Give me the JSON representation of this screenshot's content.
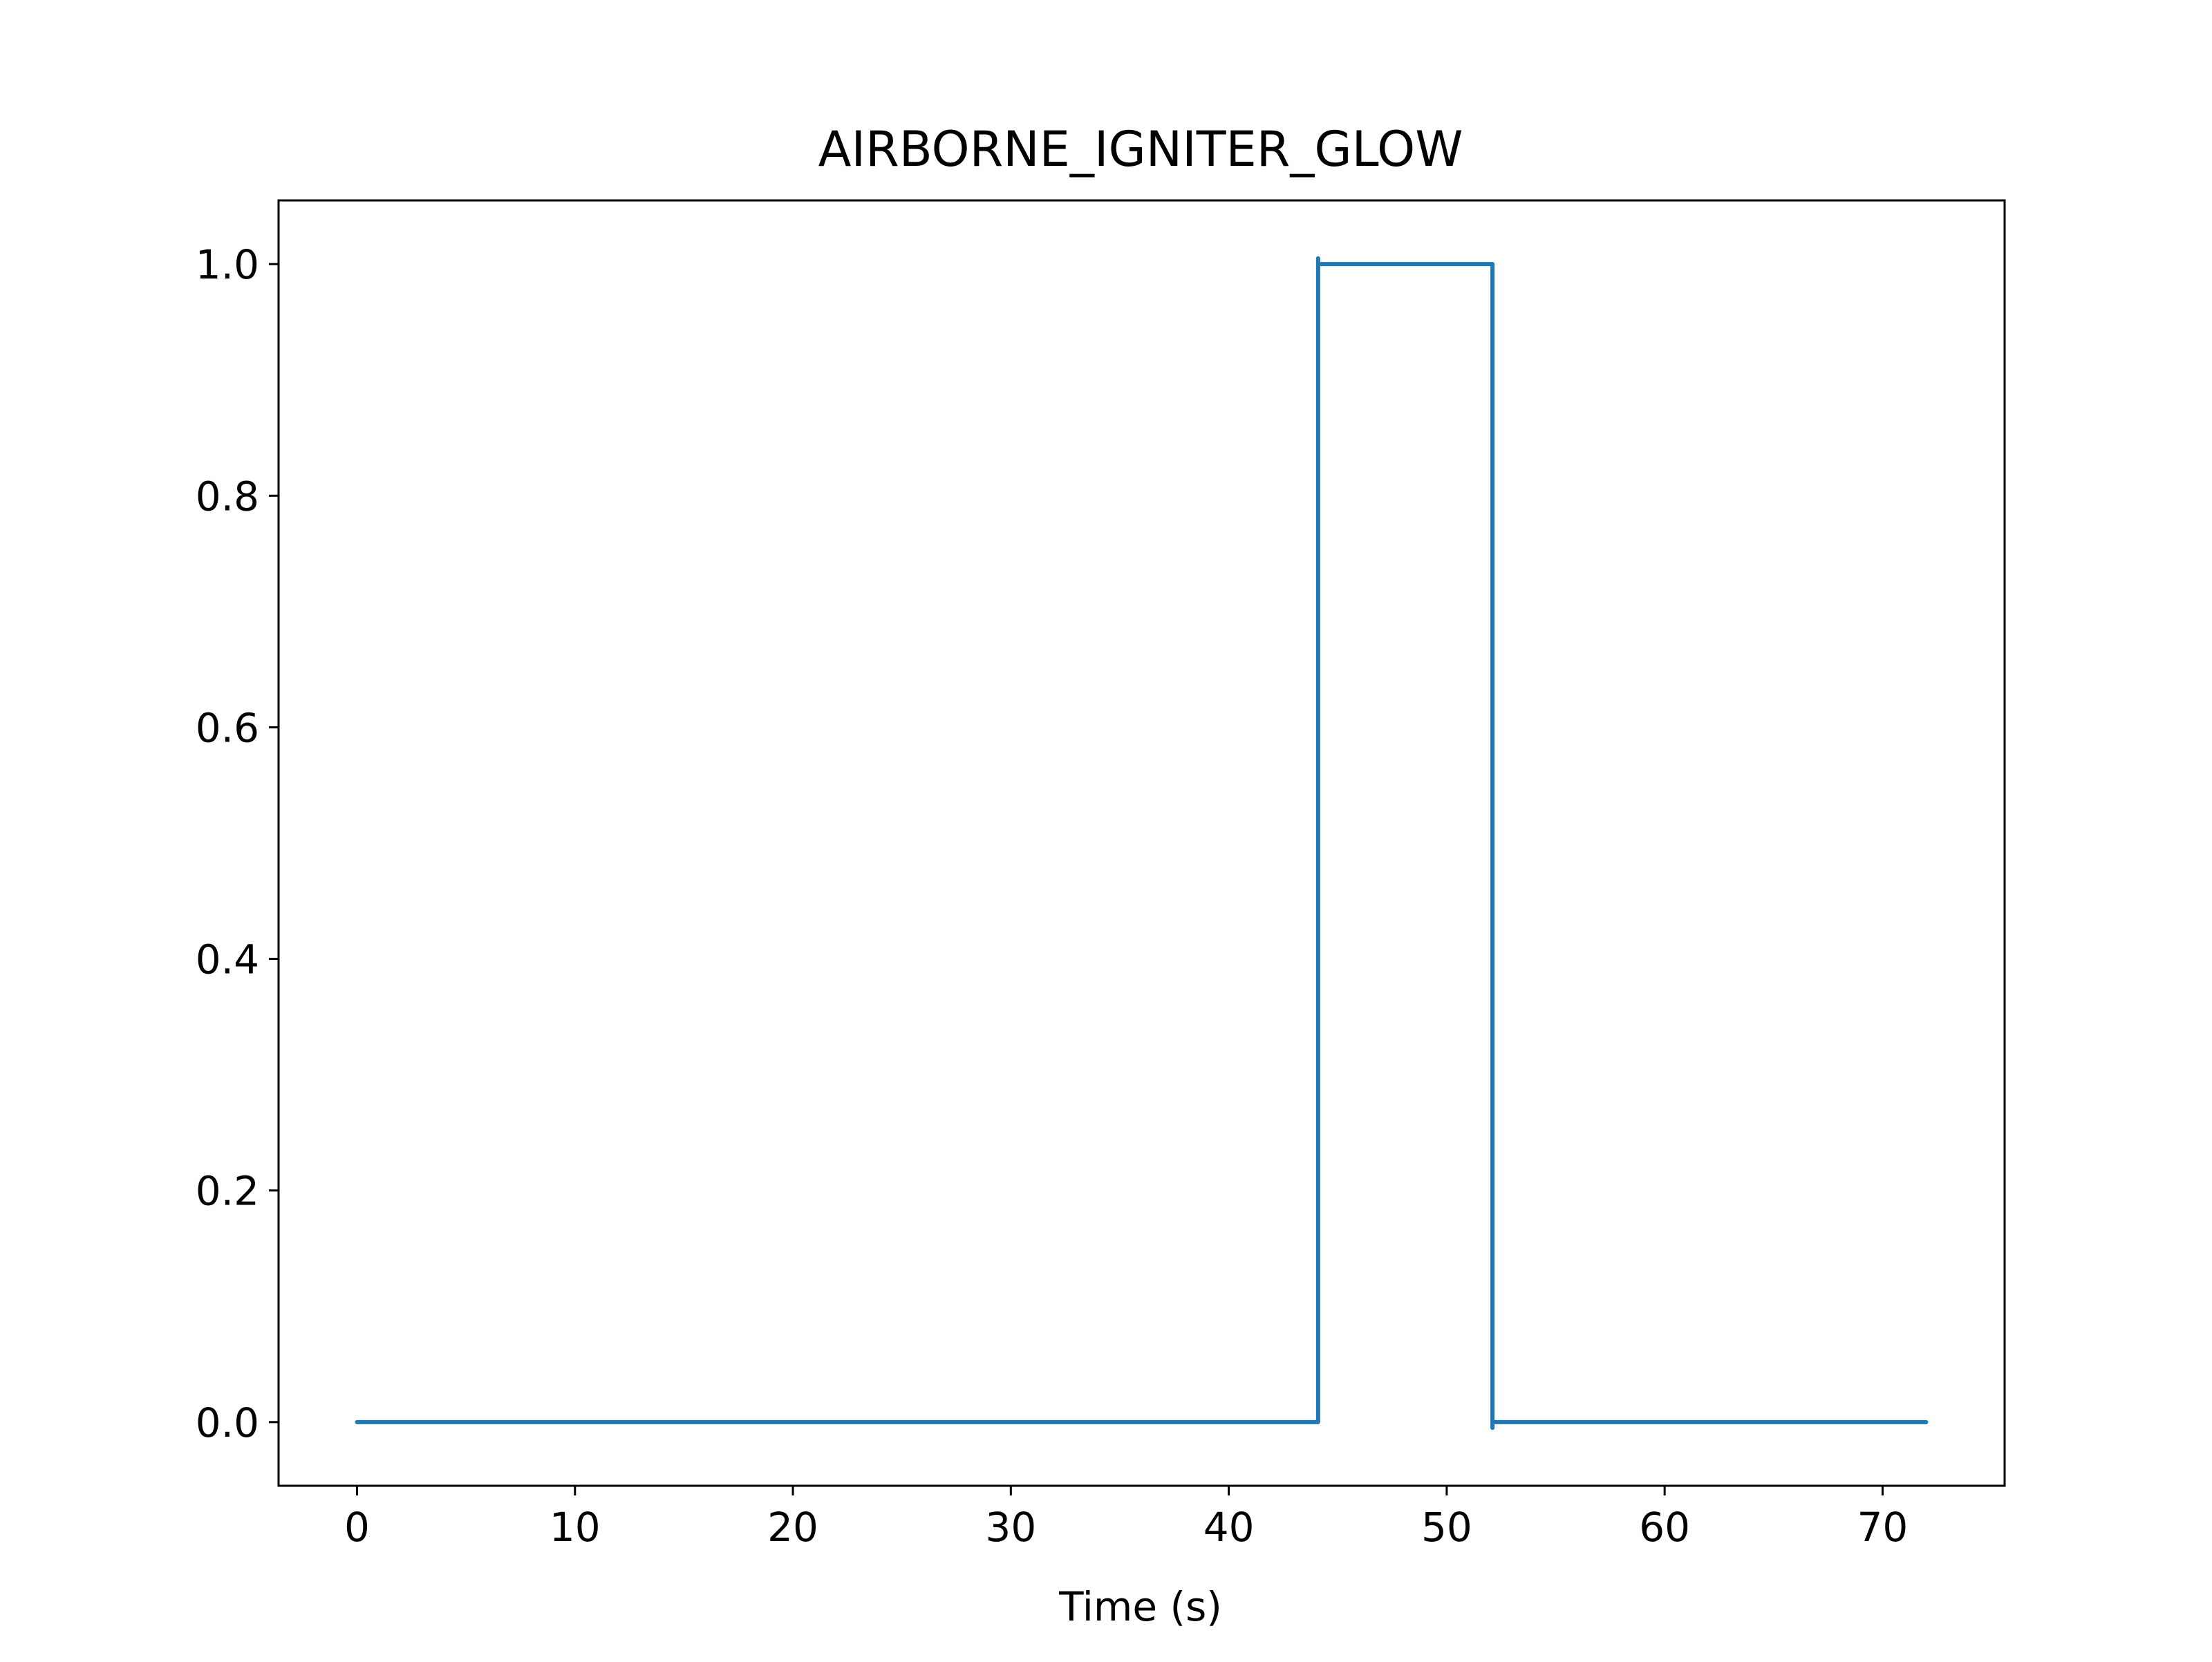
{
  "chart_data": {
    "type": "line",
    "title": "AIRBORNE_IGNITER_GLOW",
    "xlabel": "Time (s)",
    "ylabel": "",
    "xlim": [
      -3.6,
      75.6
    ],
    "ylim": [
      -0.055,
      1.055
    ],
    "xticks": [
      0,
      10,
      20,
      30,
      40,
      50,
      60,
      70
    ],
    "xtick_labels": [
      "0",
      "10",
      "20",
      "30",
      "40",
      "50",
      "60",
      "70"
    ],
    "yticks": [
      0.0,
      0.2,
      0.4,
      0.6,
      0.8,
      1.0
    ],
    "ytick_labels": [
      "0.0",
      "0.2",
      "0.4",
      "0.6",
      "0.8",
      "1.0"
    ],
    "grid": false,
    "legend": "none",
    "series": [
      {
        "color": "#1f77b4",
        "x": [
          0,
          44.1,
          44.1,
          44.1,
          52.1,
          52.1,
          52.1,
          72
        ],
        "y": [
          0,
          0,
          1.005,
          1.0,
          1.0,
          -0.005,
          0,
          0
        ]
      }
    ]
  }
}
